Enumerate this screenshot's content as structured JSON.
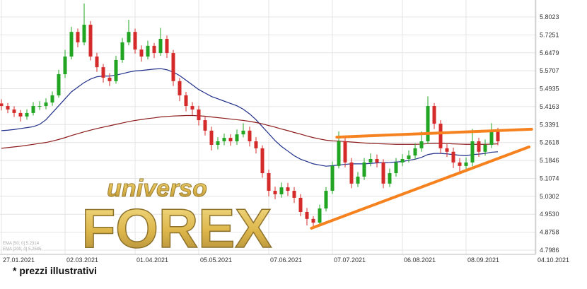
{
  "chart_data": {
    "type": "candlestick",
    "categories": [
      "27.01.2021",
      null,
      null,
      null,
      null,
      null,
      null,
      null,
      null,
      null,
      "02.03.2021",
      null,
      null,
      null,
      null,
      null,
      null,
      null,
      null,
      null,
      null,
      "01.04.2021",
      null,
      null,
      null,
      null,
      null,
      null,
      null,
      null,
      null,
      "05.05.2021",
      null,
      null,
      null,
      null,
      null,
      null,
      null,
      null,
      null,
      null,
      "07.06.2021",
      null,
      null,
      null,
      null,
      null,
      null,
      null,
      null,
      null,
      "07.07.2021",
      null,
      null,
      null,
      null,
      null,
      null,
      null,
      null,
      null,
      null,
      "06.08.2021",
      null,
      null,
      null,
      null,
      null,
      null,
      null,
      null,
      null,
      "08.09.2021",
      null,
      null,
      null,
      null,
      null,
      null,
      null,
      null,
      null,
      null,
      "04.10.2021"
    ],
    "open": [
      5.43,
      5.419,
      5.404,
      5.389,
      5.374,
      5.389,
      5.419,
      5.419,
      5.434,
      5.465,
      5.556,
      5.632,
      5.738,
      5.693,
      5.769,
      5.632,
      5.586,
      5.541,
      5.526,
      5.617,
      5.693,
      5.738,
      5.662,
      5.632,
      5.678,
      5.647,
      5.708,
      5.647,
      5.526,
      5.465,
      5.419,
      5.404,
      5.358,
      5.313,
      5.252,
      5.267,
      5.282,
      5.267,
      5.297,
      5.313,
      5.267,
      5.237,
      5.13,
      5.054,
      5.039,
      5.069,
      5.054,
      5.024,
      4.963,
      4.933,
      4.917,
      4.978,
      5.054,
      5.161,
      5.267,
      5.176,
      5.085,
      5.115,
      5.176,
      5.191,
      5.176,
      5.085,
      5.13,
      5.176,
      5.191,
      5.206,
      5.237,
      5.267,
      5.419,
      5.343,
      5.237,
      5.222,
      5.176,
      5.161,
      5.176,
      5.267,
      5.222,
      5.252,
      5.313,
      null,
      null,
      null,
      null,
      null,
      null
    ],
    "high": [
      5.448,
      5.432,
      5.418,
      5.402,
      5.405,
      5.436,
      5.44,
      5.452,
      5.482,
      5.575,
      5.66,
      5.76,
      5.752,
      5.86,
      5.785,
      5.648,
      5.6,
      5.56,
      5.635,
      5.712,
      5.79,
      5.752,
      5.68,
      5.7,
      5.69,
      5.755,
      5.722,
      5.66,
      5.54,
      5.48,
      5.436,
      5.42,
      5.372,
      5.33,
      5.285,
      5.3,
      5.298,
      5.318,
      5.345,
      5.33,
      5.285,
      5.25,
      5.145,
      5.072,
      5.09,
      5.088,
      5.07,
      5.04,
      4.98,
      4.945,
      4.995,
      5.07,
      5.18,
      5.31,
      5.285,
      5.195,
      5.135,
      5.195,
      5.215,
      5.21,
      5.19,
      5.15,
      5.195,
      5.212,
      5.228,
      5.258,
      5.31,
      5.46,
      5.432,
      5.358,
      5.255,
      5.24,
      5.195,
      5.198,
      5.32,
      5.282,
      5.275,
      5.345,
      5.325,
      null,
      null,
      null,
      null,
      null,
      null
    ],
    "low": [
      5.4,
      5.388,
      5.372,
      5.352,
      5.36,
      5.378,
      5.402,
      5.405,
      5.42,
      5.455,
      5.54,
      5.62,
      5.672,
      5.68,
      5.615,
      5.566,
      5.52,
      5.505,
      5.515,
      5.605,
      5.68,
      5.645,
      5.61,
      5.62,
      5.625,
      5.635,
      5.626,
      5.505,
      5.44,
      5.396,
      5.38,
      5.335,
      5.292,
      5.228,
      5.232,
      5.25,
      5.248,
      5.252,
      5.284,
      5.245,
      5.215,
      5.11,
      5.03,
      5.018,
      5.025,
      5.032,
      5.002,
      4.945,
      4.905,
      4.895,
      4.905,
      4.965,
      5.04,
      5.15,
      5.155,
      5.065,
      5.07,
      5.1,
      5.16,
      5.155,
      5.065,
      5.07,
      5.115,
      5.16,
      5.176,
      5.19,
      5.222,
      5.255,
      5.32,
      5.215,
      5.2,
      5.152,
      5.13,
      5.14,
      5.16,
      5.2,
      5.205,
      5.238,
      5.25,
      null,
      null,
      null,
      null,
      null,
      null
    ],
    "close": [
      5.419,
      5.404,
      5.389,
      5.374,
      5.389,
      5.419,
      5.419,
      5.434,
      5.465,
      5.556,
      5.632,
      5.738,
      5.693,
      5.769,
      5.632,
      5.586,
      5.541,
      5.526,
      5.617,
      5.693,
      5.738,
      5.662,
      5.632,
      5.678,
      5.647,
      5.708,
      5.647,
      5.526,
      5.465,
      5.419,
      5.404,
      5.358,
      5.313,
      5.252,
      5.267,
      5.282,
      5.267,
      5.297,
      5.313,
      5.267,
      5.237,
      5.13,
      5.054,
      5.039,
      5.069,
      5.054,
      5.024,
      4.963,
      4.933,
      4.917,
      4.978,
      5.054,
      5.161,
      5.267,
      5.176,
      5.085,
      5.115,
      5.176,
      5.191,
      5.176,
      5.085,
      5.13,
      5.176,
      5.191,
      5.206,
      5.237,
      5.267,
      5.419,
      5.343,
      5.237,
      5.222,
      5.176,
      5.161,
      5.176,
      5.267,
      5.222,
      5.252,
      5.313,
      5.267,
      null,
      null,
      null,
      null,
      null,
      null
    ],
    "up_color": "#22a522",
    "down_color": "#d42a2a",
    "series": [
      {
        "name": "EMA [50; 0] 5.2314",
        "color": "#1f2f8a",
        "values": [
          5.313,
          5.315,
          5.318,
          5.322,
          5.326,
          5.33,
          5.34,
          5.36,
          5.39,
          5.42,
          5.45,
          5.48,
          5.5,
          5.52,
          5.535,
          5.545,
          5.548,
          5.548,
          5.552,
          5.558,
          5.565,
          5.57,
          5.572,
          5.575,
          5.578,
          5.58,
          5.575,
          5.565,
          5.55,
          5.53,
          5.51,
          5.49,
          5.475,
          5.46,
          5.45,
          5.44,
          5.43,
          5.42,
          5.405,
          5.385,
          5.36,
          5.33,
          5.3,
          5.27,
          5.245,
          5.225,
          5.205,
          5.19,
          5.18,
          5.17,
          5.165,
          5.16,
          5.162,
          5.165,
          5.168,
          5.17,
          5.17,
          5.17,
          5.172,
          5.174,
          5.175,
          5.176,
          5.178,
          5.18,
          5.185,
          5.19,
          5.198,
          5.21,
          5.215,
          5.215,
          5.213,
          5.21,
          5.207,
          5.205,
          5.21,
          5.212,
          5.215,
          5.22,
          5.222,
          null,
          null,
          null,
          null,
          null,
          null
        ]
      },
      {
        "name": "EMA [200; 0] 5.2545",
        "color": "#8b1a1a",
        "values": [
          5.237,
          5.24,
          5.243,
          5.246,
          5.25,
          5.254,
          5.258,
          5.262,
          5.268,
          5.275,
          5.283,
          5.292,
          5.3,
          5.308,
          5.315,
          5.322,
          5.328,
          5.334,
          5.34,
          5.346,
          5.352,
          5.357,
          5.361,
          5.365,
          5.368,
          5.372,
          5.374,
          5.376,
          5.377,
          5.378,
          5.378,
          5.377,
          5.375,
          5.372,
          5.369,
          5.366,
          5.363,
          5.36,
          5.357,
          5.353,
          5.348,
          5.342,
          5.335,
          5.328,
          5.32,
          5.313,
          5.305,
          5.298,
          5.29,
          5.283,
          5.277,
          5.272,
          5.269,
          5.268,
          5.266,
          5.264,
          5.262,
          5.26,
          5.258,
          5.257,
          5.256,
          5.255,
          5.254,
          5.254,
          5.254,
          5.254,
          5.255,
          5.257,
          5.258,
          5.258,
          5.257,
          5.256,
          5.255,
          5.254,
          5.254,
          5.254,
          5.254,
          5.255,
          5.256,
          null,
          null,
          null,
          null,
          null,
          null
        ]
      }
    ],
    "trendlines": [
      {
        "color": "#f5821f",
        "x": [
          48.7,
          82.9
        ],
        "y": [
          4.893,
          5.243
        ]
      },
      {
        "color": "#f5821f",
        "x": [
          52.7,
          83.3
        ],
        "y": [
          5.285,
          5.319
        ]
      }
    ],
    "ylim": [
      4.7804,
      5.8753
    ],
    "yticks": [
      5.8023,
      5.7251,
      5.6479,
      5.5707,
      5.4935,
      5.4163,
      5.3391,
      5.2618,
      5.1846,
      5.1074,
      5.0302,
      {
        "value": 4.953,
        "label": "4.9530"
      },
      4.8758,
      4.7986
    ],
    "grid": true,
    "watermark": [
      "universo",
      "FOREX"
    ],
    "footnote": "* prezzi illustrativi"
  }
}
